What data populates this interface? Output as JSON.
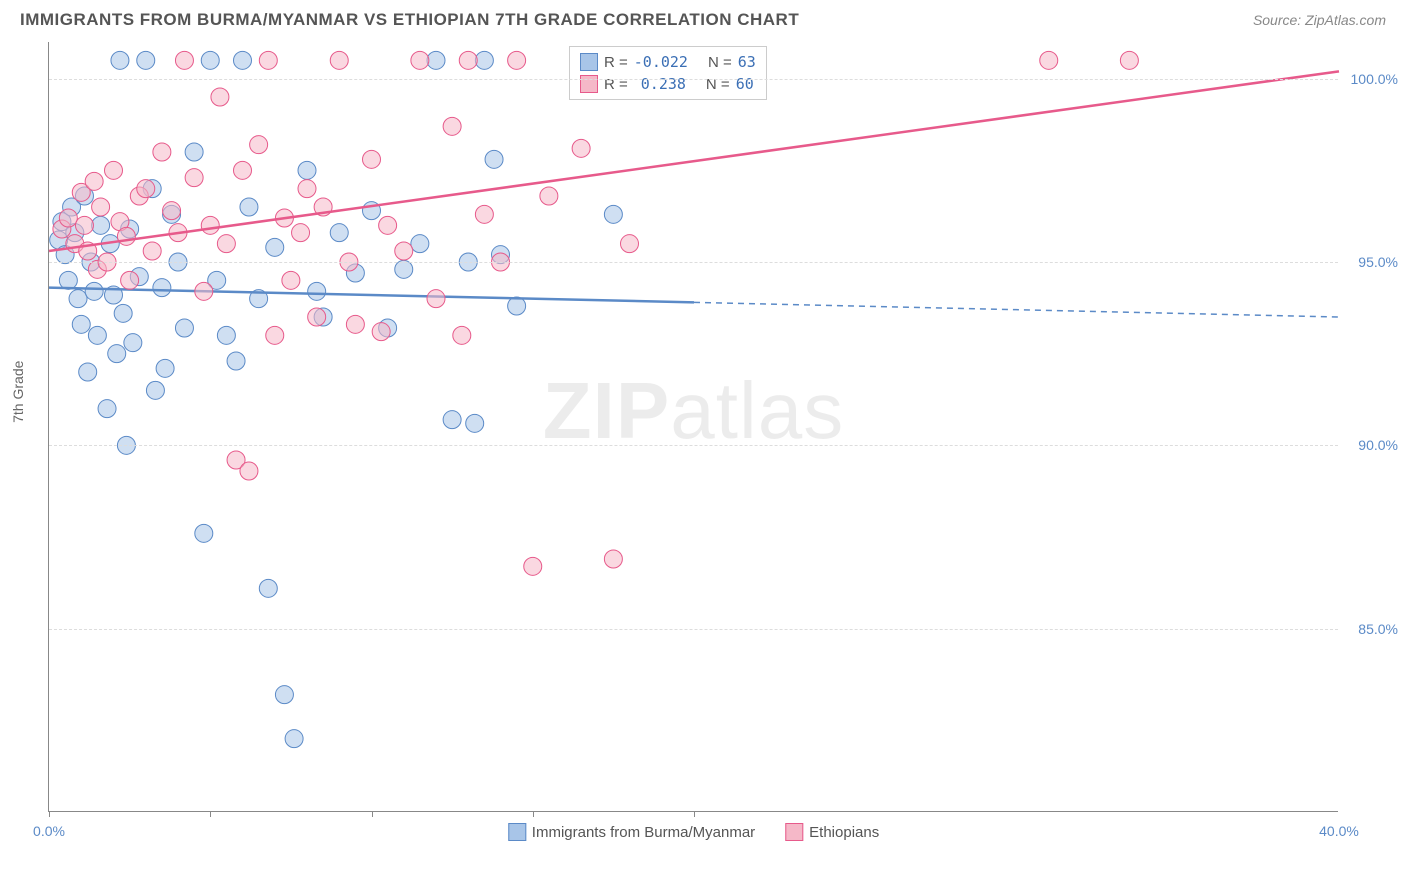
{
  "title": "IMMIGRANTS FROM BURMA/MYANMAR VS ETHIOPIAN 7TH GRADE CORRELATION CHART",
  "source": "Source: ZipAtlas.com",
  "y_axis_label": "7th Grade",
  "watermark_bold": "ZIP",
  "watermark_light": "atlas",
  "chart": {
    "type": "scatter",
    "x_min": 0.0,
    "x_max": 40.0,
    "y_min": 80.0,
    "y_max": 101.0,
    "y_ticks": [
      85.0,
      90.0,
      95.0,
      100.0
    ],
    "y_tick_labels": [
      "85.0%",
      "90.0%",
      "95.0%",
      "100.0%"
    ],
    "x_ticks": [
      0,
      5,
      10,
      15,
      20
    ],
    "x_tick_labels": {
      "0": "0.0%",
      "40": "40.0%"
    },
    "background_color": "#ffffff",
    "grid_color": "#dddddd",
    "series": [
      {
        "name": "Immigrants from Burma/Myanmar",
        "color_fill": "#a8c5e8",
        "color_stroke": "#5b8ac7",
        "fill_opacity": 0.55,
        "marker_radius": 9,
        "R": "-0.022",
        "N": "63",
        "trend": {
          "x1": 0,
          "y1": 94.3,
          "x2": 20,
          "y2": 93.9,
          "x2_ext": 40,
          "y2_ext": 93.5
        },
        "points": [
          [
            0.3,
            95.6
          ],
          [
            0.4,
            96.1
          ],
          [
            0.5,
            95.2
          ],
          [
            0.6,
            94.5
          ],
          [
            0.7,
            96.5
          ],
          [
            0.8,
            95.8
          ],
          [
            0.9,
            94.0
          ],
          [
            1.0,
            93.3
          ],
          [
            1.1,
            96.8
          ],
          [
            1.2,
            92.0
          ],
          [
            1.3,
            95.0
          ],
          [
            1.4,
            94.2
          ],
          [
            1.5,
            93.0
          ],
          [
            1.6,
            96.0
          ],
          [
            1.8,
            91.0
          ],
          [
            1.9,
            95.5
          ],
          [
            2.0,
            94.1
          ],
          [
            2.1,
            92.5
          ],
          [
            2.2,
            100.5
          ],
          [
            2.3,
            93.6
          ],
          [
            2.4,
            90.0
          ],
          [
            2.5,
            95.9
          ],
          [
            2.6,
            92.8
          ],
          [
            2.8,
            94.6
          ],
          [
            3.0,
            100.5
          ],
          [
            3.2,
            97.0
          ],
          [
            3.3,
            91.5
          ],
          [
            3.5,
            94.3
          ],
          [
            3.6,
            92.1
          ],
          [
            3.8,
            96.3
          ],
          [
            4.0,
            95.0
          ],
          [
            4.2,
            93.2
          ],
          [
            4.5,
            98.0
          ],
          [
            4.8,
            87.6
          ],
          [
            5.0,
            100.5
          ],
          [
            5.2,
            94.5
          ],
          [
            5.5,
            93.0
          ],
          [
            5.8,
            92.3
          ],
          [
            6.0,
            100.5
          ],
          [
            6.2,
            96.5
          ],
          [
            6.5,
            94.0
          ],
          [
            6.8,
            86.1
          ],
          [
            7.0,
            95.4
          ],
          [
            7.3,
            83.2
          ],
          [
            7.6,
            82.0
          ],
          [
            8.0,
            97.5
          ],
          [
            8.3,
            94.2
          ],
          [
            8.5,
            93.5
          ],
          [
            9.0,
            95.8
          ],
          [
            9.5,
            94.7
          ],
          [
            10.0,
            96.4
          ],
          [
            10.5,
            93.2
          ],
          [
            11.0,
            94.8
          ],
          [
            11.5,
            95.5
          ],
          [
            12.0,
            100.5
          ],
          [
            12.5,
            90.7
          ],
          [
            13.0,
            95.0
          ],
          [
            13.2,
            90.6
          ],
          [
            13.5,
            100.5
          ],
          [
            14.0,
            95.2
          ],
          [
            14.5,
            93.8
          ],
          [
            17.5,
            96.3
          ],
          [
            13.8,
            97.8
          ]
        ]
      },
      {
        "name": "Ethiopians",
        "color_fill": "#f5b8c8",
        "color_stroke": "#e75a8b",
        "fill_opacity": 0.55,
        "marker_radius": 9,
        "R": "0.238",
        "N": "60",
        "trend": {
          "x1": 0,
          "y1": 95.3,
          "x2": 40,
          "y2": 100.2,
          "x2_ext": 40,
          "y2_ext": 100.2
        },
        "points": [
          [
            0.4,
            95.9
          ],
          [
            0.6,
            96.2
          ],
          [
            0.8,
            95.5
          ],
          [
            1.0,
            96.9
          ],
          [
            1.1,
            96.0
          ],
          [
            1.2,
            95.3
          ],
          [
            1.4,
            97.2
          ],
          [
            1.5,
            94.8
          ],
          [
            1.6,
            96.5
          ],
          [
            1.8,
            95.0
          ],
          [
            2.0,
            97.5
          ],
          [
            2.2,
            96.1
          ],
          [
            2.4,
            95.7
          ],
          [
            2.5,
            94.5
          ],
          [
            2.8,
            96.8
          ],
          [
            3.0,
            97.0
          ],
          [
            3.2,
            95.3
          ],
          [
            3.5,
            98.0
          ],
          [
            3.8,
            96.4
          ],
          [
            4.0,
            95.8
          ],
          [
            4.2,
            100.5
          ],
          [
            4.5,
            97.3
          ],
          [
            4.8,
            94.2
          ],
          [
            5.0,
            96.0
          ],
          [
            5.3,
            99.5
          ],
          [
            5.5,
            95.5
          ],
          [
            5.8,
            89.6
          ],
          [
            6.0,
            97.5
          ],
          [
            6.2,
            89.3
          ],
          [
            6.5,
            98.2
          ],
          [
            6.8,
            100.5
          ],
          [
            7.0,
            93.0
          ],
          [
            7.3,
            96.2
          ],
          [
            7.5,
            94.5
          ],
          [
            7.8,
            95.8
          ],
          [
            8.0,
            97.0
          ],
          [
            8.3,
            93.5
          ],
          [
            8.5,
            96.5
          ],
          [
            9.0,
            100.5
          ],
          [
            9.3,
            95.0
          ],
          [
            9.5,
            93.3
          ],
          [
            10.0,
            97.8
          ],
          [
            10.3,
            93.1
          ],
          [
            10.5,
            96.0
          ],
          [
            11.0,
            95.3
          ],
          [
            11.5,
            100.5
          ],
          [
            12.0,
            94.0
          ],
          [
            12.5,
            98.7
          ],
          [
            13.0,
            100.5
          ],
          [
            13.5,
            96.3
          ],
          [
            14.0,
            95.0
          ],
          [
            14.5,
            100.5
          ],
          [
            15.0,
            86.7
          ],
          [
            15.5,
            96.8
          ],
          [
            16.5,
            98.1
          ],
          [
            17.5,
            86.9
          ],
          [
            18.0,
            95.5
          ],
          [
            31.0,
            100.5
          ],
          [
            33.5,
            100.5
          ],
          [
            12.8,
            93.0
          ]
        ]
      }
    ]
  },
  "legend_labels": {
    "r_label": "R =",
    "n_label": "N ="
  },
  "bottom_legend": [
    "Immigrants from Burma/Myanmar",
    "Ethiopians"
  ]
}
